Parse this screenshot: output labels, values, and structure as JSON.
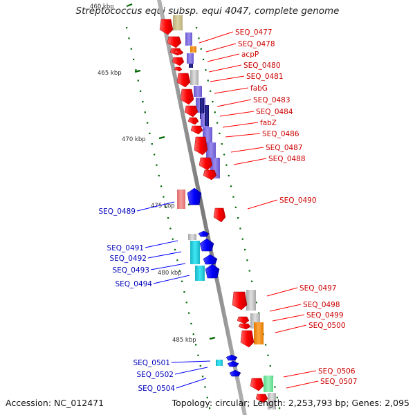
{
  "title": "Streptococcus equi subsp. equi 4047, complete genome",
  "footer": {
    "accession": "Accession: NC_012471",
    "topology": "Topology: circular; Length: 2,253,793 bp; Genes: 2,095"
  },
  "scale_labels": [
    "460 kbp",
    "465 kbp",
    "470 kbp",
    "475 kbp",
    "480 kbp",
    "485 kbp"
  ],
  "colors": {
    "red_gene": "#ff0000",
    "blue_gene": "#0000ff",
    "red_label": "#cc0000",
    "blue_label": "#0000bb",
    "tick": "#006600",
    "axis": "#9a9a9a"
  },
  "genes_right": [
    "SEQ_0477",
    "SEQ_0478",
    "acpP",
    "SEQ_0480",
    "SEQ_0481",
    "fabG",
    "SEQ_0483",
    "SEQ_0484",
    "fabZ",
    "SEQ_0486",
    "SEQ_0487",
    "SEQ_0488",
    "SEQ_0490",
    "SEQ_0497",
    "SEQ_0498",
    "SEQ_0499",
    "SEQ_0500",
    "SEQ_0506",
    "SEQ_0507"
  ],
  "genes_left": [
    "SEQ_0489",
    "SEQ_0491",
    "SEQ_0492",
    "SEQ_0493",
    "SEQ_0494",
    "SEQ_0501",
    "SEQ_0502",
    "SEQ_0504"
  ]
}
